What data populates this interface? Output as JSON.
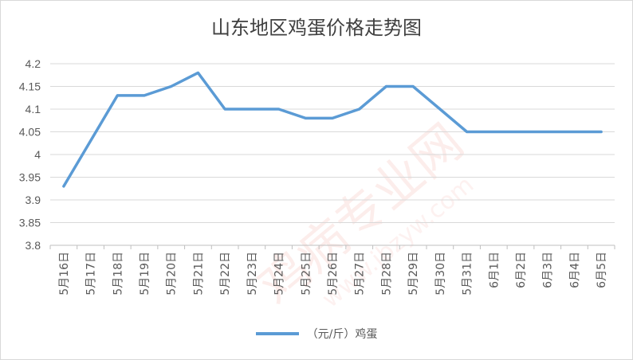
{
  "chart_data": {
    "type": "line",
    "title": "山东地区鸡蛋价格走势图",
    "categories": [
      "5月16日",
      "5月17日",
      "5月18日",
      "5月19日",
      "5月20日",
      "5月21日",
      "5月22日",
      "5月23日",
      "5月24日",
      "5月25日",
      "5月26日",
      "5月27日",
      "5月28日",
      "5月29日",
      "5月30日",
      "5月31日",
      "6月1日",
      "6月2日",
      "6月3日",
      "6月4日",
      "6月5日"
    ],
    "series": [
      {
        "name": "（元/斤）鸡蛋",
        "values": [
          3.93,
          4.03,
          4.13,
          4.13,
          4.15,
          4.18,
          4.1,
          4.1,
          4.1,
          4.08,
          4.08,
          4.1,
          4.15,
          4.15,
          4.1,
          4.05,
          4.05,
          4.05,
          4.05,
          4.05,
          4.05
        ],
        "color": "#5b9bd5"
      }
    ],
    "ylim": [
      3.8,
      4.2
    ],
    "yticks": [
      "3.8",
      "3.85",
      "3.9",
      "3.95",
      "4",
      "4.05",
      "4.1",
      "4.15",
      "4.2"
    ],
    "grid": true,
    "legend_position": "bottom"
  },
  "watermark": {
    "text": "鸡病专业网",
    "url": "www.jbzyw.com"
  }
}
